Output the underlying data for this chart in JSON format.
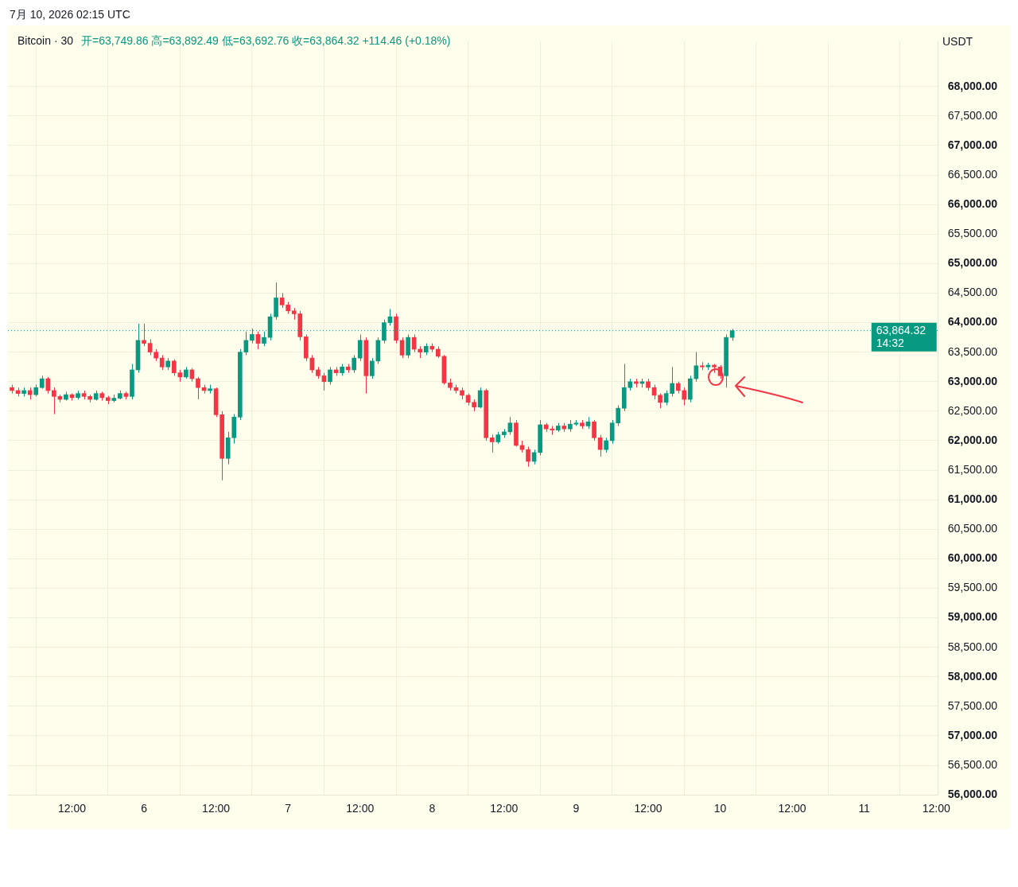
{
  "chart_data": {
    "type": "candlestick",
    "title": "Bitcoin · 30",
    "subtitle": "开=63,749.86  高=63,892.49  低=63,692.76  收=63,864.32  +114.46 (+0.18%)",
    "ylabel": "USDT",
    "annotations": [
      "7月 10, 2026 02:15 UTC",
      "14:32"
    ],
    "x": [
      "2026-07-05T02:00",
      "2026-07-05T03:00",
      "2026-07-05T04:00",
      "2026-07-05T05:00",
      "2026-07-05T06:00",
      "2026-07-05T07:00",
      "2026-07-05T08:00",
      "2026-07-05T09:00",
      "2026-07-05T10:00",
      "2026-07-05T11:00",
      "2026-07-05T12:00",
      "2026-07-05T13:00",
      "2026-07-05T14:00",
      "2026-07-05T15:00",
      "2026-07-05T16:00",
      "2026-07-05T17:00",
      "2026-07-05T18:00",
      "2026-07-05T19:00",
      "2026-07-05T20:00",
      "2026-07-05T21:00",
      "2026-07-05T22:00",
      "2026-07-05T23:00",
      "2026-07-06T00:00",
      "2026-07-06T01:00",
      "2026-07-06T02:00",
      "2026-07-06T03:00",
      "2026-07-06T04:00",
      "2026-07-06T05:00",
      "2026-07-06T06:00",
      "2026-07-06T07:00",
      "2026-07-06T08:00",
      "2026-07-06T09:00",
      "2026-07-06T10:00",
      "2026-07-06T11:00",
      "2026-07-06T12:00",
      "2026-07-06T13:00",
      "2026-07-06T14:00",
      "2026-07-06T15:00",
      "2026-07-06T16:00",
      "2026-07-06T17:00",
      "2026-07-06T18:00",
      "2026-07-06T19:00",
      "2026-07-06T20:00",
      "2026-07-06T21:00",
      "2026-07-06T22:00",
      "2026-07-06T23:00",
      "2026-07-07T00:00",
      "2026-07-07T01:00",
      "2026-07-07T02:00",
      "2026-07-07T03:00",
      "2026-07-07T04:00",
      "2026-07-07T05:00",
      "2026-07-07T06:00",
      "2026-07-07T07:00",
      "2026-07-07T08:00",
      "2026-07-07T09:00",
      "2026-07-07T10:00",
      "2026-07-07T11:00",
      "2026-07-07T12:00",
      "2026-07-07T13:00",
      "2026-07-07T14:00",
      "2026-07-07T15:00",
      "2026-07-07T16:00",
      "2026-07-07T17:00",
      "2026-07-07T18:00",
      "2026-07-07T19:00",
      "2026-07-07T20:00",
      "2026-07-07T21:00",
      "2026-07-07T22:00",
      "2026-07-07T23:00",
      "2026-07-08T00:00",
      "2026-07-08T01:00",
      "2026-07-08T02:00",
      "2026-07-08T03:00",
      "2026-07-08T04:00",
      "2026-07-08T05:00",
      "2026-07-08T06:00",
      "2026-07-08T07:00",
      "2026-07-08T08:00",
      "2026-07-08T09:00",
      "2026-07-08T10:00",
      "2026-07-08T11:00",
      "2026-07-08T12:00",
      "2026-07-08T13:00",
      "2026-07-08T14:00",
      "2026-07-08T15:00",
      "2026-07-08T16:00",
      "2026-07-08T17:00",
      "2026-07-08T18:00",
      "2026-07-08T19:00",
      "2026-07-08T20:00",
      "2026-07-08T21:00",
      "2026-07-08T22:00",
      "2026-07-08T23:00",
      "2026-07-09T00:00",
      "2026-07-09T01:00",
      "2026-07-09T02:00",
      "2026-07-09T03:00",
      "2026-07-09T04:00",
      "2026-07-09T05:00",
      "2026-07-09T06:00",
      "2026-07-09T07:00",
      "2026-07-09T08:00",
      "2026-07-09T09:00",
      "2026-07-09T10:00",
      "2026-07-09T11:00",
      "2026-07-09T12:00",
      "2026-07-09T13:00",
      "2026-07-09T14:00",
      "2026-07-09T15:00",
      "2026-07-09T16:00",
      "2026-07-09T17:00",
      "2026-07-09T18:00",
      "2026-07-09T19:00",
      "2026-07-09T20:00",
      "2026-07-09T21:00",
      "2026-07-09T22:00",
      "2026-07-09T23:00",
      "2026-07-10T00:00",
      "2026-07-10T01:00",
      "2026-07-10T02:00"
    ],
    "ohlc": [
      [
        62900,
        62950,
        62800,
        62850
      ],
      [
        62850,
        62900,
        62750,
        62800
      ],
      [
        62800,
        62900,
        62750,
        62850
      ],
      [
        62850,
        62900,
        62700,
        62780
      ],
      [
        62780,
        62950,
        62750,
        62900
      ],
      [
        62900,
        63100,
        62880,
        63050
      ],
      [
        63050,
        63080,
        62800,
        62850
      ],
      [
        62850,
        62900,
        62450,
        62750
      ],
      [
        62750,
        62780,
        62650,
        62700
      ],
      [
        62700,
        62830,
        62680,
        62780
      ],
      [
        62780,
        62800,
        62680,
        62730
      ],
      [
        62730,
        62850,
        62700,
        62800
      ],
      [
        62800,
        62850,
        62700,
        62750
      ],
      [
        62750,
        62780,
        62650,
        62700
      ],
      [
        62700,
        62850,
        62680,
        62800
      ],
      [
        62800,
        62830,
        62680,
        62730
      ],
      [
        62730,
        62760,
        62620,
        62680
      ],
      [
        62680,
        62780,
        62650,
        62720
      ],
      [
        62720,
        62850,
        62700,
        62800
      ],
      [
        62800,
        62830,
        62700,
        62750
      ],
      [
        62750,
        63300,
        62700,
        63200
      ],
      [
        63200,
        63980,
        63150,
        63700
      ],
      [
        63700,
        63980,
        63600,
        63650
      ],
      [
        63650,
        63720,
        63450,
        63500
      ],
      [
        63500,
        63550,
        63350,
        63400
      ],
      [
        63400,
        63450,
        63200,
        63250
      ],
      [
        63250,
        63400,
        63200,
        63350
      ],
      [
        63350,
        63380,
        63100,
        63150
      ],
      [
        63150,
        63200,
        63000,
        63080
      ],
      [
        63080,
        63250,
        63050,
        63200
      ],
      [
        63200,
        63230,
        63000,
        63050
      ],
      [
        63050,
        63080,
        62700,
        62900
      ],
      [
        62900,
        62950,
        62800,
        62850
      ],
      [
        62850,
        62950,
        62800,
        62880
      ],
      [
        62880,
        62900,
        62400,
        62440
      ],
      [
        62440,
        62500,
        61330,
        61700
      ],
      [
        61700,
        62150,
        61600,
        62050
      ],
      [
        62050,
        62450,
        61950,
        62400
      ],
      [
        62400,
        63550,
        62350,
        63500
      ],
      [
        63500,
        63850,
        63450,
        63700
      ],
      [
        63700,
        63900,
        63650,
        63800
      ],
      [
        63800,
        63850,
        63550,
        63650
      ],
      [
        63650,
        63850,
        63600,
        63750
      ],
      [
        63750,
        64150,
        63700,
        64100
      ],
      [
        64100,
        64680,
        64050,
        64420
      ],
      [
        64420,
        64500,
        64250,
        64300
      ],
      [
        64300,
        64350,
        64150,
        64200
      ],
      [
        64200,
        64250,
        64050,
        64150
      ],
      [
        64150,
        64200,
        63700,
        63760
      ],
      [
        63760,
        63800,
        63350,
        63400
      ],
      [
        63400,
        63450,
        63150,
        63200
      ],
      [
        63200,
        63250,
        63050,
        63100
      ],
      [
        63100,
        63150,
        62850,
        63000
      ],
      [
        63000,
        63250,
        62950,
        63200
      ],
      [
        63200,
        63250,
        63100,
        63150
      ],
      [
        63150,
        63300,
        63100,
        63250
      ],
      [
        63250,
        63300,
        63150,
        63200
      ],
      [
        63200,
        63450,
        63150,
        63400
      ],
      [
        63400,
        63800,
        63350,
        63700
      ],
      [
        63700,
        63750,
        62800,
        63100
      ],
      [
        63100,
        63400,
        63050,
        63350
      ],
      [
        63350,
        63750,
        63300,
        63700
      ],
      [
        63700,
        64050,
        63650,
        64000
      ],
      [
        64000,
        64230,
        63950,
        64100
      ],
      [
        64100,
        64150,
        63650,
        63700
      ],
      [
        63700,
        63750,
        63400,
        63450
      ],
      [
        63450,
        63800,
        63400,
        63750
      ],
      [
        63750,
        63800,
        63500,
        63550
      ],
      [
        63550,
        63600,
        63400,
        63500
      ],
      [
        63500,
        63650,
        63450,
        63600
      ],
      [
        63600,
        63650,
        63500,
        63550
      ],
      [
        63550,
        63600,
        63400,
        63430
      ],
      [
        63430,
        63450,
        62950,
        62980
      ],
      [
        62980,
        63050,
        62850,
        62900
      ],
      [
        62900,
        62950,
        62800,
        62850
      ],
      [
        62850,
        62900,
        62700,
        62770
      ],
      [
        62770,
        62800,
        62600,
        62650
      ],
      [
        62650,
        62700,
        62500,
        62570
      ],
      [
        62570,
        62900,
        62550,
        62850
      ],
      [
        62850,
        62880,
        62000,
        62050
      ],
      [
        62050,
        62100,
        61800,
        61980
      ],
      [
        61980,
        62150,
        61950,
        62100
      ],
      [
        62100,
        62200,
        62050,
        62150
      ],
      [
        62150,
        62400,
        62100,
        62300
      ],
      [
        62300,
        62350,
        61900,
        61920
      ],
      [
        61920,
        62000,
        61800,
        61850
      ],
      [
        61850,
        61900,
        61560,
        61650
      ],
      [
        61650,
        61850,
        61600,
        61800
      ],
      [
        61800,
        62350,
        61750,
        62270
      ],
      [
        62270,
        62300,
        62150,
        62200
      ],
      [
        62200,
        62250,
        62100,
        62180
      ],
      [
        62180,
        62300,
        62150,
        62250
      ],
      [
        62250,
        62300,
        62150,
        62200
      ],
      [
        62200,
        62350,
        62150,
        62280
      ],
      [
        62280,
        62350,
        62250,
        62300
      ],
      [
        62300,
        62350,
        62200,
        62250
      ],
      [
        62250,
        62400,
        62200,
        62320
      ],
      [
        62320,
        62350,
        62000,
        62050
      ],
      [
        62050,
        62100,
        61730,
        61850
      ],
      [
        61850,
        62050,
        61800,
        62000
      ],
      [
        62000,
        62350,
        61950,
        62300
      ],
      [
        62300,
        62600,
        62250,
        62550
      ],
      [
        62550,
        63300,
        62500,
        62900
      ],
      [
        62900,
        63050,
        62850,
        63000
      ],
      [
        63000,
        63050,
        62900,
        62970
      ],
      [
        62970,
        63050,
        62900,
        63000
      ],
      [
        63000,
        63050,
        62850,
        62900
      ],
      [
        62900,
        62950,
        62700,
        62770
      ],
      [
        62770,
        62800,
        62550,
        62650
      ],
      [
        62650,
        62850,
        62600,
        62800
      ],
      [
        62800,
        63250,
        62750,
        62970
      ],
      [
        62970,
        63000,
        62800,
        62850
      ],
      [
        62850,
        62900,
        62600,
        62700
      ],
      [
        62700,
        63100,
        62650,
        63050
      ],
      [
        63050,
        63500,
        63000,
        63270
      ],
      [
        63270,
        63330,
        63200,
        63250
      ],
      [
        63250,
        63320,
        63200,
        63280
      ],
      [
        63280,
        63300,
        63150,
        63250
      ],
      [
        63250,
        63280,
        63050,
        63100
      ],
      [
        63100,
        63800,
        62900,
        63749.86
      ],
      [
        63749.86,
        63892.49,
        63692.76,
        63864.32
      ]
    ],
    "xlim": [
      "2026-07-05T01:20",
      "2026-07-11T12:20"
    ],
    "xticks": [
      {
        "value": "2026-07-05T12:00",
        "label": "12:00"
      },
      {
        "value": "2026-07-06T00:00",
        "label": "6"
      },
      {
        "value": "2026-07-06T12:00",
        "label": "12:00"
      },
      {
        "value": "2026-07-07T00:00",
        "label": "7"
      },
      {
        "value": "2026-07-07T12:00",
        "label": "12:00"
      },
      {
        "value": "2026-07-08T00:00",
        "label": "8"
      },
      {
        "value": "2026-07-08T12:00",
        "label": "12:00"
      },
      {
        "value": "2026-07-09T00:00",
        "label": "9"
      },
      {
        "value": "2026-07-09T12:00",
        "label": "12:00"
      },
      {
        "value": "2026-07-10T00:00",
        "label": "10"
      },
      {
        "value": "2026-07-10T12:00",
        "label": "12:00"
      },
      {
        "value": "2026-07-11T00:00",
        "label": "11"
      },
      {
        "value": "2026-07-11T12:00",
        "label": "12:00"
      }
    ],
    "ylim": [
      56000,
      68760
    ],
    "yticks": [
      {
        "value": 56000,
        "label": "56,000.00"
      },
      {
        "value": 56500,
        "label": "56,500.00"
      },
      {
        "value": 57000,
        "label": "57,000.00"
      },
      {
        "value": 57500,
        "label": "57,500.00"
      },
      {
        "value": 58000,
        "label": "58,000.00"
      },
      {
        "value": 58500,
        "label": "58,500.00"
      },
      {
        "value": 59000,
        "label": "59,000.00"
      },
      {
        "value": 59500,
        "label": "59,500.00"
      },
      {
        "value": 60000,
        "label": "60,000.00"
      },
      {
        "value": 60500,
        "label": "60,500.00"
      },
      {
        "value": 61000,
        "label": "61,000.00"
      },
      {
        "value": 61500,
        "label": "61,500.00"
      },
      {
        "value": 62000,
        "label": "62,000.00"
      },
      {
        "value": 62500,
        "label": "62,500.00"
      },
      {
        "value": 63000,
        "label": "63,000.00"
      },
      {
        "value": 63500,
        "label": "63,500.00"
      },
      {
        "value": 64000,
        "label": "64,000.00"
      },
      {
        "value": 64500,
        "label": "64,500.00"
      },
      {
        "value": 65000,
        "label": "65,000.00"
      },
      {
        "value": 65500,
        "label": "65,500.00"
      },
      {
        "value": 66000,
        "label": "66,000.00"
      },
      {
        "value": 66500,
        "label": "66,500.00"
      },
      {
        "value": 67000,
        "label": "67,000.00"
      },
      {
        "value": 67500,
        "label": "67,500.00"
      },
      {
        "value": 68000,
        "label": "68,000.00"
      }
    ],
    "ref_lines": [
      {
        "axis": "y",
        "value": 63864.32,
        "label": "63,864.32",
        "color": "#089981",
        "line_style": "dotted"
      }
    ],
    "grid": true,
    "legend": false
  }
}
